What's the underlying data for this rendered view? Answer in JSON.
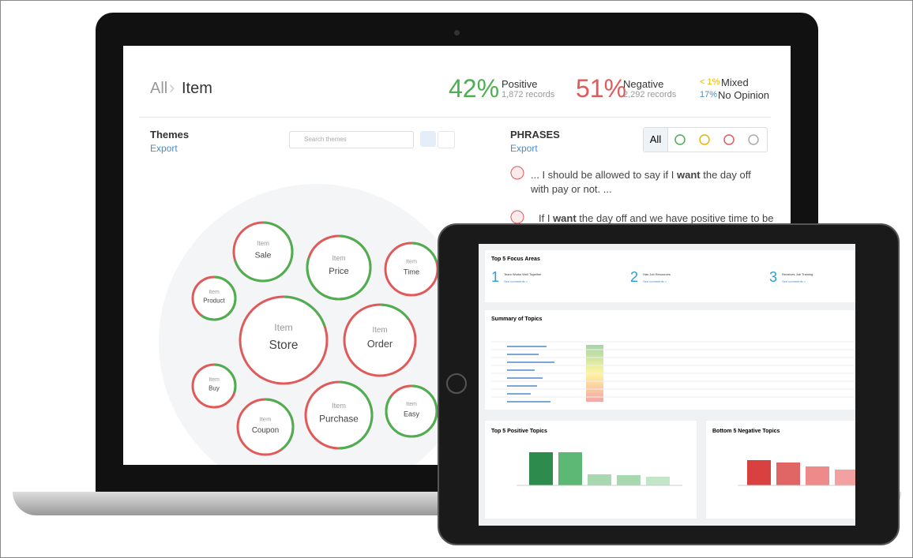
{
  "laptop": {
    "breadcrumb": {
      "root": "All",
      "current": "Item"
    },
    "stats": [
      {
        "value": "42%",
        "label": "Positive",
        "records": "1,872 records"
      },
      {
        "value": "51%",
        "label": "Negative",
        "records": "2,292 records"
      }
    ],
    "minor_stats": [
      {
        "value": "< 1%",
        "label": "Mixed"
      },
      {
        "value": "17%",
        "label": "No Opinion"
      }
    ],
    "themes": {
      "title": "Themes",
      "export": "Export",
      "search": "Search themes",
      "bubbles": [
        {
          "small": "Item",
          "name": "Sale",
          "positive_share": 0.7
        },
        {
          "small": "Item",
          "name": "Price",
          "positive_share": 0.8
        },
        {
          "small": "Item",
          "name": "Time",
          "positive_share": 0.2
        },
        {
          "small": "Item",
          "name": "Product",
          "positive_share": 0.6
        },
        {
          "small": "Item",
          "name": "Store",
          "positive_share": 0.2
        },
        {
          "small": "Item",
          "name": "Order",
          "positive_share": 0.15
        },
        {
          "small": "Item",
          "name": "Buy",
          "positive_share": 0.3
        },
        {
          "small": "Item",
          "name": "Purchase",
          "positive_share": 0.5
        },
        {
          "small": "Item",
          "name": "Easy",
          "positive_share": 0.85
        },
        {
          "small": "Item",
          "name": "Coupon",
          "positive_share": 0.4
        }
      ]
    },
    "phrases": {
      "title": "PHRASES",
      "export": "Export",
      "filter_all": "All",
      "items": [
        {
          "before": "... I should be allowed to say if I ",
          "bold": "want",
          "after": " the day off with pay or not. ..."
        },
        {
          "before": "If I ",
          "bold": "want",
          "after": " the day off and we have positive time to be"
        }
      ]
    }
  },
  "tablet": {
    "focus": {
      "title": "Top 5 Focus Areas",
      "items": [
        {
          "num": "1",
          "label": "Team Works Well Together",
          "link": "See comments >"
        },
        {
          "num": "2",
          "label": "Has Job Resources",
          "link": "See comments >"
        },
        {
          "num": "3",
          "label": "Receives Job Training",
          "link": "See comments >"
        }
      ]
    },
    "summary": {
      "title": "Summary of Topics"
    },
    "positive": {
      "title": "Top 5 Positive Topics"
    },
    "negative": {
      "title": "Bottom 5 Negative Topics"
    }
  }
}
